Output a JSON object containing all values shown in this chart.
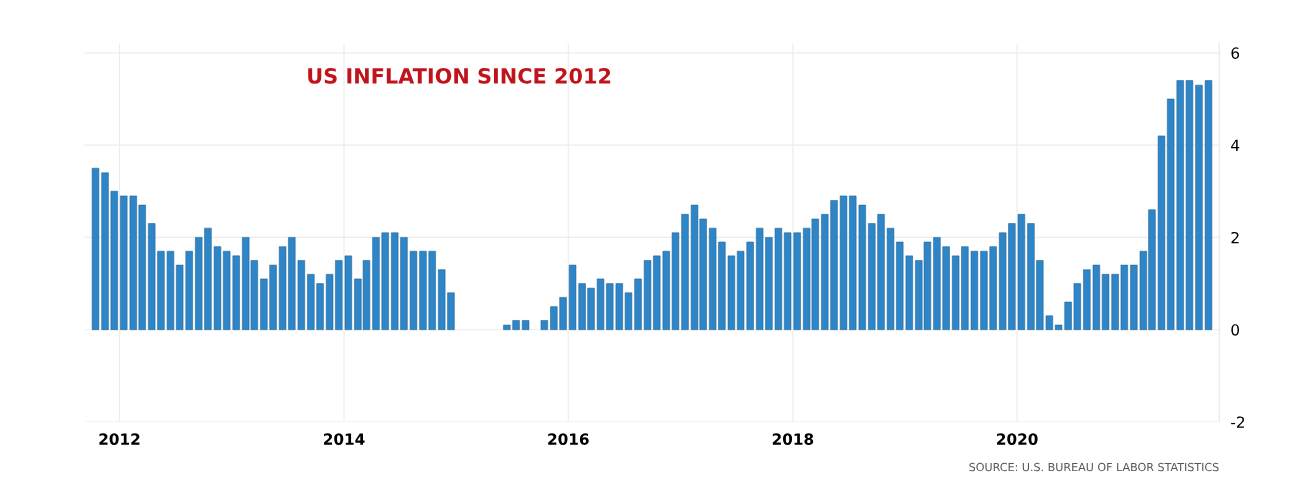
{
  "chart_data": {
    "type": "bar",
    "title": "US INFLATION SINCE 2012",
    "x": [
      "2011-10",
      "2011-11",
      "2011-12",
      "2012-01",
      "2012-02",
      "2012-03",
      "2012-04",
      "2012-05",
      "2012-06",
      "2012-07",
      "2012-08",
      "2012-09",
      "2012-10",
      "2012-11",
      "2012-12",
      "2013-01",
      "2013-02",
      "2013-03",
      "2013-04",
      "2013-05",
      "2013-06",
      "2013-07",
      "2013-08",
      "2013-09",
      "2013-10",
      "2013-11",
      "2013-12",
      "2014-01",
      "2014-02",
      "2014-03",
      "2014-04",
      "2014-05",
      "2014-06",
      "2014-07",
      "2014-08",
      "2014-09",
      "2014-10",
      "2014-11",
      "2014-12",
      "2015-01",
      "2015-02",
      "2015-03",
      "2015-04",
      "2015-05",
      "2015-06",
      "2015-07",
      "2015-08",
      "2015-09",
      "2015-10",
      "2015-11",
      "2015-12",
      "2016-01",
      "2016-02",
      "2016-03",
      "2016-04",
      "2016-05",
      "2016-06",
      "2016-07",
      "2016-08",
      "2016-09",
      "2016-10",
      "2016-11",
      "2016-12",
      "2017-01",
      "2017-02",
      "2017-03",
      "2017-04",
      "2017-05",
      "2017-06",
      "2017-07",
      "2017-08",
      "2017-09",
      "2017-10",
      "2017-11",
      "2017-12",
      "2018-01",
      "2018-02",
      "2018-03",
      "2018-04",
      "2018-05",
      "2018-06",
      "2018-07",
      "2018-08",
      "2018-09",
      "2018-10",
      "2018-11",
      "2018-12",
      "2019-01",
      "2019-02",
      "2019-03",
      "2019-04",
      "2019-05",
      "2019-06",
      "2019-07",
      "2019-08",
      "2019-09",
      "2019-10",
      "2019-11",
      "2019-12",
      "2020-01",
      "2020-02",
      "2020-03",
      "2020-04",
      "2020-05",
      "2020-06",
      "2020-07",
      "2020-08",
      "2020-09",
      "2020-10",
      "2020-11",
      "2020-12",
      "2021-01",
      "2021-02",
      "2021-03",
      "2021-04",
      "2021-05",
      "2021-06",
      "2021-07",
      "2021-08",
      "2021-09"
    ],
    "values": [
      3.5,
      3.4,
      3.0,
      2.9,
      2.9,
      2.7,
      2.3,
      1.7,
      1.7,
      1.4,
      1.7,
      2.0,
      2.2,
      1.8,
      1.7,
      1.6,
      2.0,
      1.5,
      1.1,
      1.4,
      1.8,
      2.0,
      1.5,
      1.2,
      1.0,
      1.2,
      1.5,
      1.6,
      1.1,
      1.5,
      2.0,
      2.1,
      2.1,
      2.0,
      1.7,
      1.7,
      1.7,
      1.3,
      0.8,
      null,
      null,
      null,
      null,
      null,
      0.1,
      0.2,
      0.2,
      null,
      0.2,
      0.5,
      0.7,
      1.4,
      1.0,
      0.9,
      1.1,
      1.0,
      1.0,
      0.8,
      1.1,
      1.5,
      1.6,
      1.7,
      2.1,
      2.5,
      2.7,
      2.4,
      2.2,
      1.9,
      1.6,
      1.7,
      1.9,
      2.2,
      2.0,
      2.2,
      2.1,
      2.1,
      2.2,
      2.4,
      2.5,
      2.8,
      2.9,
      2.9,
      2.7,
      2.3,
      2.5,
      2.2,
      1.9,
      1.6,
      1.5,
      1.9,
      2.0,
      1.8,
      1.6,
      1.8,
      1.7,
      1.7,
      1.8,
      2.1,
      2.3,
      2.5,
      2.3,
      1.5,
      0.3,
      0.1,
      0.6,
      1.0,
      1.3,
      1.4,
      1.2,
      1.2,
      1.4,
      1.4,
      1.7,
      2.6,
      4.2,
      5.0,
      5.4,
      5.4,
      5.3,
      5.4
    ],
    "color": "#2e86c8",
    "xlim": [
      "2011-09-10",
      "2021-10-20"
    ],
    "xticks": [
      {
        "value": "2012-01-01",
        "label": "2012"
      },
      {
        "value": "2014-01-01",
        "label": "2014"
      },
      {
        "value": "2016-01-01",
        "label": "2016"
      },
      {
        "value": "2018-01-01",
        "label": "2018"
      },
      {
        "value": "2020-01-01",
        "label": "2020"
      }
    ],
    "ylim": [
      -2,
      6.2
    ],
    "yticks": [
      -2,
      0,
      2,
      4,
      6
    ],
    "grid": true,
    "annotations": [
      "SOURCE: U.S. BUREAU OF LABOR STATISTICS"
    ]
  }
}
